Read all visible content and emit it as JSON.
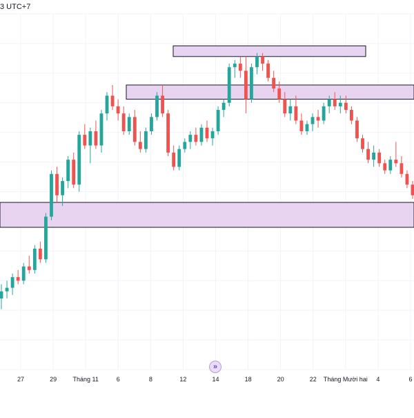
{
  "header": {
    "timezone_label": "3 UTC+7"
  },
  "controls": {
    "goto_realtime_icon": "double-chevron-right-icon",
    "goto_glyph": "»"
  },
  "colors": {
    "up": "#26a69a",
    "down": "#ef5350",
    "zone_fill": "#e8d3f0",
    "zone_stroke": "#131722",
    "grid": "#f0f3fa",
    "axis_text": "#131722"
  },
  "chart_data": {
    "type": "candlestick",
    "x_tick_labels": [
      "27",
      "29",
      "Tháng 11",
      "6",
      "8",
      "12",
      "14",
      "18",
      "20",
      "22",
      "Tháng Mười hai",
      "4",
      "6"
    ],
    "ylim": [
      0,
      100
    ],
    "grid": true,
    "candles": [
      {
        "o": 20,
        "h": 24,
        "l": 17,
        "c": 22
      },
      {
        "o": 22,
        "h": 25,
        "l": 20,
        "c": 23
      },
      {
        "o": 23,
        "h": 27,
        "l": 21,
        "c": 26
      },
      {
        "o": 26,
        "h": 28,
        "l": 24,
        "c": 25
      },
      {
        "o": 25,
        "h": 30,
        "l": 24,
        "c": 29
      },
      {
        "o": 29,
        "h": 32,
        "l": 27,
        "c": 28
      },
      {
        "o": 28,
        "h": 35,
        "l": 27,
        "c": 34
      },
      {
        "o": 34,
        "h": 36,
        "l": 30,
        "c": 31
      },
      {
        "o": 31,
        "h": 44,
        "l": 30,
        "c": 43
      },
      {
        "o": 43,
        "h": 56,
        "l": 42,
        "c": 55
      },
      {
        "o": 55,
        "h": 57,
        "l": 47,
        "c": 49
      },
      {
        "o": 49,
        "h": 54,
        "l": 46,
        "c": 53
      },
      {
        "o": 53,
        "h": 60,
        "l": 51,
        "c": 59
      },
      {
        "o": 59,
        "h": 61,
        "l": 51,
        "c": 52
      },
      {
        "o": 52,
        "h": 67,
        "l": 50,
        "c": 66
      },
      {
        "o": 66,
        "h": 69,
        "l": 62,
        "c": 63
      },
      {
        "o": 63,
        "h": 68,
        "l": 58,
        "c": 67
      },
      {
        "o": 67,
        "h": 70,
        "l": 62,
        "c": 63
      },
      {
        "o": 63,
        "h": 73,
        "l": 61,
        "c": 72
      },
      {
        "o": 72,
        "h": 78,
        "l": 70,
        "c": 77
      },
      {
        "o": 77,
        "h": 80,
        "l": 73,
        "c": 74
      },
      {
        "o": 74,
        "h": 76,
        "l": 70,
        "c": 72
      },
      {
        "o": 72,
        "h": 74,
        "l": 66,
        "c": 67
      },
      {
        "o": 67,
        "h": 72,
        "l": 66,
        "c": 71
      },
      {
        "o": 71,
        "h": 73,
        "l": 63,
        "c": 64
      },
      {
        "o": 64,
        "h": 67,
        "l": 61,
        "c": 62
      },
      {
        "o": 62,
        "h": 68,
        "l": 61,
        "c": 67
      },
      {
        "o": 67,
        "h": 72,
        "l": 66,
        "c": 71
      },
      {
        "o": 71,
        "h": 78,
        "l": 70,
        "c": 77
      },
      {
        "o": 77,
        "h": 80,
        "l": 71,
        "c": 72
      },
      {
        "o": 72,
        "h": 73,
        "l": 60,
        "c": 61
      },
      {
        "o": 61,
        "h": 63,
        "l": 56,
        "c": 57
      },
      {
        "o": 57,
        "h": 63,
        "l": 56,
        "c": 62
      },
      {
        "o": 62,
        "h": 65,
        "l": 61,
        "c": 64
      },
      {
        "o": 64,
        "h": 67,
        "l": 62,
        "c": 66
      },
      {
        "o": 66,
        "h": 68,
        "l": 63,
        "c": 64
      },
      {
        "o": 64,
        "h": 69,
        "l": 63,
        "c": 68
      },
      {
        "o": 68,
        "h": 70,
        "l": 64,
        "c": 65
      },
      {
        "o": 65,
        "h": 68,
        "l": 63,
        "c": 67
      },
      {
        "o": 67,
        "h": 74,
        "l": 66,
        "c": 73
      },
      {
        "o": 73,
        "h": 76,
        "l": 71,
        "c": 75
      },
      {
        "o": 75,
        "h": 86,
        "l": 74,
        "c": 85
      },
      {
        "o": 85,
        "h": 87,
        "l": 82,
        "c": 86
      },
      {
        "o": 86,
        "h": 88,
        "l": 82,
        "c": 84
      },
      {
        "o": 84,
        "h": 88,
        "l": 72,
        "c": 76
      },
      {
        "o": 76,
        "h": 86,
        "l": 75,
        "c": 85
      },
      {
        "o": 85,
        "h": 89,
        "l": 83,
        "c": 88
      },
      {
        "o": 88,
        "h": 89,
        "l": 84,
        "c": 86
      },
      {
        "o": 86,
        "h": 87,
        "l": 81,
        "c": 82
      },
      {
        "o": 82,
        "h": 84,
        "l": 78,
        "c": 79
      },
      {
        "o": 79,
        "h": 81,
        "l": 75,
        "c": 76
      },
      {
        "o": 76,
        "h": 78,
        "l": 71,
        "c": 72
      },
      {
        "o": 72,
        "h": 76,
        "l": 70,
        "c": 74
      },
      {
        "o": 74,
        "h": 77,
        "l": 69,
        "c": 70
      },
      {
        "o": 70,
        "h": 72,
        "l": 66,
        "c": 67
      },
      {
        "o": 67,
        "h": 70,
        "l": 66,
        "c": 69
      },
      {
        "o": 69,
        "h": 72,
        "l": 67,
        "c": 71
      },
      {
        "o": 71,
        "h": 73,
        "l": 68,
        "c": 70
      },
      {
        "o": 70,
        "h": 75,
        "l": 69,
        "c": 74
      },
      {
        "o": 74,
        "h": 77,
        "l": 72,
        "c": 76
      },
      {
        "o": 76,
        "h": 78,
        "l": 73,
        "c": 74
      },
      {
        "o": 74,
        "h": 77,
        "l": 72,
        "c": 75
      },
      {
        "o": 75,
        "h": 77,
        "l": 72,
        "c": 73
      },
      {
        "o": 73,
        "h": 74,
        "l": 69,
        "c": 70
      },
      {
        "o": 70,
        "h": 71,
        "l": 64,
        "c": 65
      },
      {
        "o": 65,
        "h": 66,
        "l": 61,
        "c": 62
      },
      {
        "o": 62,
        "h": 64,
        "l": 58,
        "c": 59
      },
      {
        "o": 59,
        "h": 63,
        "l": 57,
        "c": 61
      },
      {
        "o": 61,
        "h": 62,
        "l": 57,
        "c": 58
      },
      {
        "o": 58,
        "h": 59,
        "l": 55,
        "c": 56
      },
      {
        "o": 56,
        "h": 60,
        "l": 55,
        "c": 59
      },
      {
        "o": 59,
        "h": 64,
        "l": 57,
        "c": 58
      },
      {
        "o": 58,
        "h": 60,
        "l": 54,
        "c": 55
      },
      {
        "o": 55,
        "h": 56,
        "l": 51,
        "c": 52
      },
      {
        "o": 52,
        "h": 53,
        "l": 48,
        "c": 49
      }
    ],
    "zones": [
      {
        "top": 91,
        "bottom": 88
      },
      {
        "top": 80,
        "bottom": 76
      },
      {
        "top": 47,
        "bottom": 40
      }
    ]
  }
}
